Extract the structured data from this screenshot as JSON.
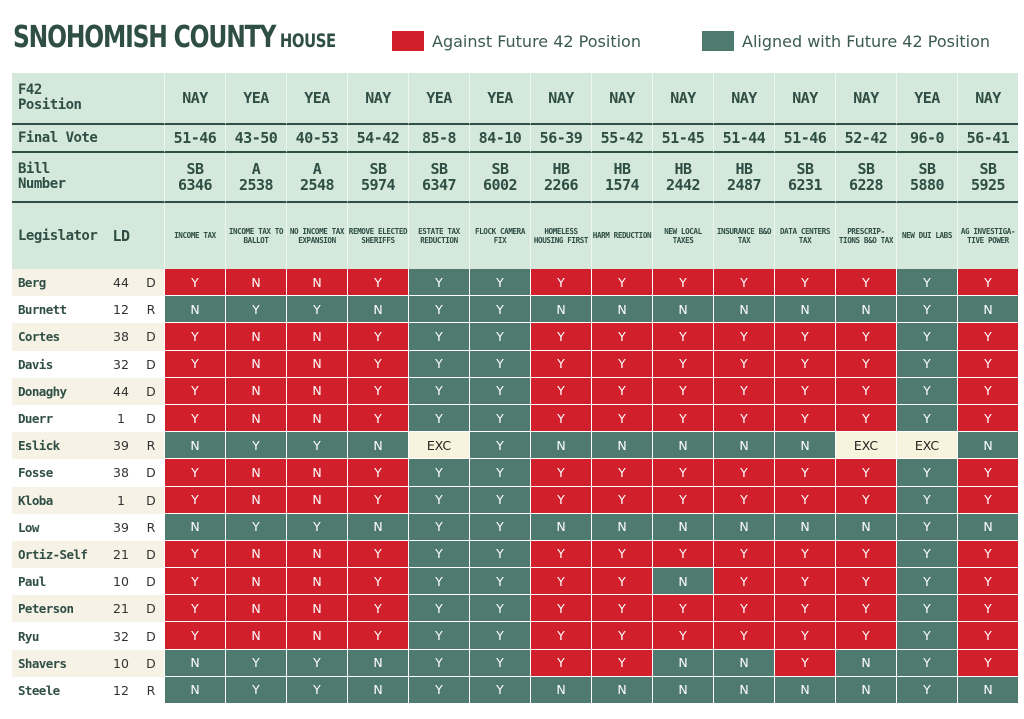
{
  "header": {
    "title": "SNOHOMISH COUNTY",
    "subtitle": "HOUSE",
    "legend": [
      {
        "label": "Against Future 42 Position",
        "color": "#d21f2c"
      },
      {
        "label": "Aligned with Future 42 Position",
        "color": "#4f7a70"
      }
    ]
  },
  "colors": {
    "against": "#d21f2c",
    "aligned": "#4f7a70",
    "excused": "#f8f3dc",
    "header_bg": "#d4e8db",
    "title": "#2f4e45"
  },
  "row_labels": {
    "position": "F42 Position",
    "final_vote": "Final Vote",
    "bill_number": "Bill Number",
    "legislator": "Legislator",
    "ld": "LD"
  },
  "bills": [
    {
      "position": "NAY",
      "vote": "51-46",
      "chamber": "SB",
      "num": "6346",
      "topic": "INCOME TAX"
    },
    {
      "position": "YEA",
      "vote": "43-50",
      "chamber": "A",
      "num": "2538",
      "topic": "INCOME TAX TO BALLOT"
    },
    {
      "position": "YEA",
      "vote": "40-53",
      "chamber": "A",
      "num": "2548",
      "topic": "NO INCOME TAX EXPANSION"
    },
    {
      "position": "NAY",
      "vote": "54-42",
      "chamber": "SB",
      "num": "5974",
      "topic": "REMOVE ELECTED SHERIFFS"
    },
    {
      "position": "YEA",
      "vote": "85-8",
      "chamber": "SB",
      "num": "6347",
      "topic": "ESTATE TAX REDUCTION"
    },
    {
      "position": "YEA",
      "vote": "84-10",
      "chamber": "SB",
      "num": "6002",
      "topic": "FLOCK CAMERA FIX"
    },
    {
      "position": "NAY",
      "vote": "56-39",
      "chamber": "HB",
      "num": "2266",
      "topic": "HOMELESS HOUSING FIRST"
    },
    {
      "position": "NAY",
      "vote": "55-42",
      "chamber": "HB",
      "num": "1574",
      "topic": "HARM REDUCTION"
    },
    {
      "position": "NAY",
      "vote": "51-45",
      "chamber": "HB",
      "num": "2442",
      "topic": "NEW LOCAL TAXES"
    },
    {
      "position": "NAY",
      "vote": "51-44",
      "chamber": "HB",
      "num": "2487",
      "topic": "INSURANCE B&O TAX"
    },
    {
      "position": "NAY",
      "vote": "51-46",
      "chamber": "SB",
      "num": "6231",
      "topic": "DATA CENTERS TAX"
    },
    {
      "position": "NAY",
      "vote": "52-42",
      "chamber": "SB",
      "num": "6228",
      "topic": "PRESCRIP- TIONS B&O TAX"
    },
    {
      "position": "YEA",
      "vote": "96-0",
      "chamber": "SB",
      "num": "5880",
      "topic": "NEW DUI LABS"
    },
    {
      "position": "NAY",
      "vote": "56-41",
      "chamber": "SB",
      "num": "5925",
      "topic": "AG INVESTIGA- TIVE POWER"
    }
  ],
  "legislators": [
    {
      "name": "Berg",
      "ld": "44",
      "party": "D",
      "votes": [
        "Y",
        "N",
        "N",
        "Y",
        "Y",
        "Y",
        "Y",
        "Y",
        "Y",
        "Y",
        "Y",
        "Y",
        "Y",
        "Y"
      ]
    },
    {
      "name": "Burnett",
      "ld": "12",
      "party": "R",
      "votes": [
        "N",
        "Y",
        "Y",
        "N",
        "Y",
        "Y",
        "N",
        "N",
        "N",
        "N",
        "N",
        "N",
        "Y",
        "N"
      ]
    },
    {
      "name": "Cortes",
      "ld": "38",
      "party": "D",
      "votes": [
        "Y",
        "N",
        "N",
        "Y",
        "Y",
        "Y",
        "Y",
        "Y",
        "Y",
        "Y",
        "Y",
        "Y",
        "Y",
        "Y"
      ]
    },
    {
      "name": "Davis",
      "ld": "32",
      "party": "D",
      "votes": [
        "Y",
        "N",
        "N",
        "Y",
        "Y",
        "Y",
        "Y",
        "Y",
        "Y",
        "Y",
        "Y",
        "Y",
        "Y",
        "Y"
      ]
    },
    {
      "name": "Donaghy",
      "ld": "44",
      "party": "D",
      "votes": [
        "Y",
        "N",
        "N",
        "Y",
        "Y",
        "Y",
        "Y",
        "Y",
        "Y",
        "Y",
        "Y",
        "Y",
        "Y",
        "Y"
      ]
    },
    {
      "name": "Duerr",
      "ld": "1",
      "party": "D",
      "votes": [
        "Y",
        "N",
        "N",
        "Y",
        "Y",
        "Y",
        "Y",
        "Y",
        "Y",
        "Y",
        "Y",
        "Y",
        "Y",
        "Y"
      ]
    },
    {
      "name": "Eslick",
      "ld": "39",
      "party": "R",
      "votes": [
        "N",
        "Y",
        "Y",
        "N",
        "EXC",
        "Y",
        "N",
        "N",
        "N",
        "N",
        "N",
        "EXC",
        "EXC",
        "N"
      ]
    },
    {
      "name": "Fosse",
      "ld": "38",
      "party": "D",
      "votes": [
        "Y",
        "N",
        "N",
        "Y",
        "Y",
        "Y",
        "Y",
        "Y",
        "Y",
        "Y",
        "Y",
        "Y",
        "Y",
        "Y"
      ]
    },
    {
      "name": "Kloba",
      "ld": "1",
      "party": "D",
      "votes": [
        "Y",
        "N",
        "N",
        "Y",
        "Y",
        "Y",
        "Y",
        "Y",
        "Y",
        "Y",
        "Y",
        "Y",
        "Y",
        "Y"
      ]
    },
    {
      "name": "Low",
      "ld": "39",
      "party": "R",
      "votes": [
        "N",
        "Y",
        "Y",
        "N",
        "Y",
        "Y",
        "N",
        "N",
        "N",
        "N",
        "N",
        "N",
        "Y",
        "N"
      ]
    },
    {
      "name": "Ortiz-Self",
      "ld": "21",
      "party": "D",
      "votes": [
        "Y",
        "N",
        "N",
        "Y",
        "Y",
        "Y",
        "Y",
        "Y",
        "Y",
        "Y",
        "Y",
        "Y",
        "Y",
        "Y"
      ]
    },
    {
      "name": "Paul",
      "ld": "10",
      "party": "D",
      "votes": [
        "Y",
        "N",
        "N",
        "Y",
        "Y",
        "Y",
        "Y",
        "Y",
        "N",
        "Y",
        "Y",
        "Y",
        "Y",
        "Y"
      ]
    },
    {
      "name": "Peterson",
      "ld": "21",
      "party": "D",
      "votes": [
        "Y",
        "N",
        "N",
        "Y",
        "Y",
        "Y",
        "Y",
        "Y",
        "Y",
        "Y",
        "Y",
        "Y",
        "Y",
        "Y"
      ]
    },
    {
      "name": "Ryu",
      "ld": "32",
      "party": "D",
      "votes": [
        "Y",
        "N",
        "N",
        "Y",
        "Y",
        "Y",
        "Y",
        "Y",
        "Y",
        "Y",
        "Y",
        "Y",
        "Y",
        "Y"
      ]
    },
    {
      "name": "Shavers",
      "ld": "10",
      "party": "D",
      "votes": [
        "N",
        "Y",
        "Y",
        "N",
        "Y",
        "Y",
        "Y",
        "Y",
        "N",
        "N",
        "Y",
        "N",
        "Y",
        "Y"
      ]
    },
    {
      "name": "Steele",
      "ld": "12",
      "party": "R",
      "votes": [
        "N",
        "Y",
        "Y",
        "N",
        "Y",
        "Y",
        "N",
        "N",
        "N",
        "N",
        "N",
        "N",
        "Y",
        "N"
      ]
    }
  ]
}
